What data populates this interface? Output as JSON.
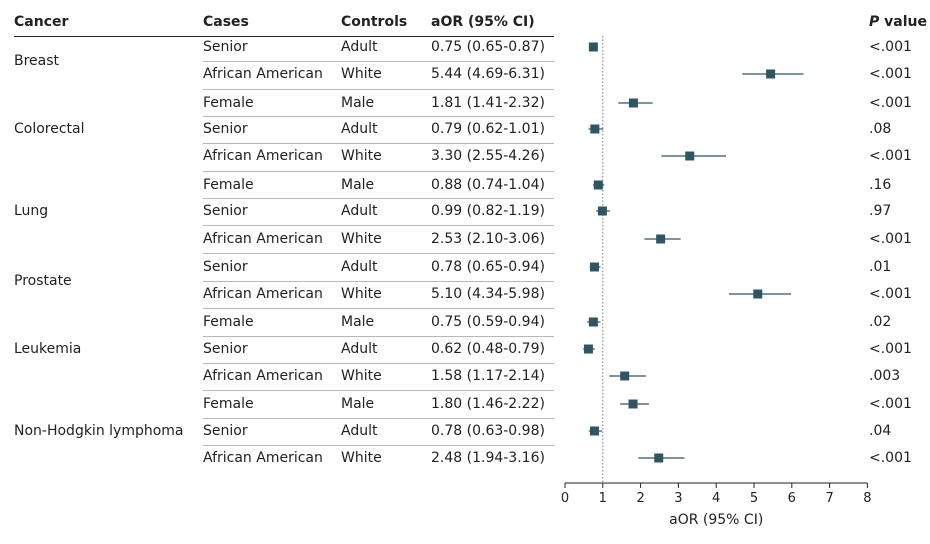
{
  "headers": {
    "cancer": "Cancer",
    "cases": "Cases",
    "controls": "Controls",
    "aor": "aOR (95% CI)",
    "p_italic": "P",
    "p_rest": " value"
  },
  "chart_data": {
    "type": "forest",
    "xlabel": "aOR (95% CI)",
    "xlim": [
      0,
      8
    ],
    "xticks": [
      "0",
      "1",
      "2",
      "3",
      "4",
      "5",
      "6",
      "7",
      "8"
    ],
    "reference_line": 1,
    "marker_color": "#2f5563",
    "groups": [
      {
        "label": "Breast",
        "rows": [
          0,
          1
        ]
      },
      {
        "label": "Colorectal",
        "rows": [
          3
        ]
      },
      {
        "label": "Lung",
        "rows": [
          6
        ]
      },
      {
        "label": "Prostate",
        "rows": [
          8,
          9
        ]
      },
      {
        "label": "Leukemia",
        "rows": [
          11
        ]
      },
      {
        "label": "Non-Hodgkin lymphoma",
        "rows": [
          14
        ]
      }
    ],
    "rows": [
      {
        "cases": "Senior",
        "controls": "Adult",
        "aor_text": "0.75 (0.65-0.87)",
        "or": 0.75,
        "lo": 0.65,
        "hi": 0.87,
        "p": "<.001"
      },
      {
        "cases": "African American",
        "controls": "White",
        "aor_text": "5.44 (4.69-6.31)",
        "or": 5.44,
        "lo": 4.69,
        "hi": 6.31,
        "p": "<.001"
      },
      {
        "cases": "Female",
        "controls": "Male",
        "aor_text": "1.81 (1.41-2.32)",
        "or": 1.81,
        "lo": 1.41,
        "hi": 2.32,
        "p": "<.001"
      },
      {
        "cases": "Senior",
        "controls": "Adult",
        "aor_text": "0.79 (0.62-1.01)",
        "or": 0.79,
        "lo": 0.62,
        "hi": 1.01,
        "p": ".08"
      },
      {
        "cases": "African American",
        "controls": "White",
        "aor_text": "3.30 (2.55-4.26)",
        "or": 3.3,
        "lo": 2.55,
        "hi": 4.26,
        "p": "<.001"
      },
      {
        "cases": "Female",
        "controls": "Male",
        "aor_text": "0.88 (0.74-1.04)",
        "or": 0.88,
        "lo": 0.74,
        "hi": 1.04,
        "p": ".16"
      },
      {
        "cases": "Senior",
        "controls": "Adult",
        "aor_text": "0.99 (0.82-1.19)",
        "or": 0.99,
        "lo": 0.82,
        "hi": 1.19,
        "p": ".97"
      },
      {
        "cases": "African American",
        "controls": "White",
        "aor_text": "2.53 (2.10-3.06)",
        "or": 2.53,
        "lo": 2.1,
        "hi": 3.06,
        "p": "<.001"
      },
      {
        "cases": "Senior",
        "controls": "Adult",
        "aor_text": "0.78 (0.65-0.94)",
        "or": 0.78,
        "lo": 0.65,
        "hi": 0.94,
        "p": ".01"
      },
      {
        "cases": "African American",
        "controls": "White",
        "aor_text": "5.10 (4.34-5.98)",
        "or": 5.1,
        "lo": 4.34,
        "hi": 5.98,
        "p": "<.001"
      },
      {
        "cases": "Female",
        "controls": "Male",
        "aor_text": "0.75 (0.59-0.94)",
        "or": 0.75,
        "lo": 0.59,
        "hi": 0.94,
        "p": ".02"
      },
      {
        "cases": "Senior",
        "controls": "Adult",
        "aor_text": "0.62 (0.48-0.79)",
        "or": 0.62,
        "lo": 0.48,
        "hi": 0.79,
        "p": "<.001"
      },
      {
        "cases": "African American",
        "controls": "White",
        "aor_text": "1.58 (1.17-2.14)",
        "or": 1.58,
        "lo": 1.17,
        "hi": 2.14,
        "p": ".003"
      },
      {
        "cases": "Female",
        "controls": "Male",
        "aor_text": "1.80 (1.46-2.22)",
        "or": 1.8,
        "lo": 1.46,
        "hi": 2.22,
        "p": "<.001"
      },
      {
        "cases": "Senior",
        "controls": "Adult",
        "aor_text": "0.78 (0.63-0.98)",
        "or": 0.78,
        "lo": 0.63,
        "hi": 0.98,
        "p": ".04"
      },
      {
        "cases": "African American",
        "controls": "White",
        "aor_text": "2.48 (1.94-3.16)",
        "or": 2.48,
        "lo": 1.94,
        "hi": 3.16,
        "p": "<.001"
      }
    ]
  }
}
